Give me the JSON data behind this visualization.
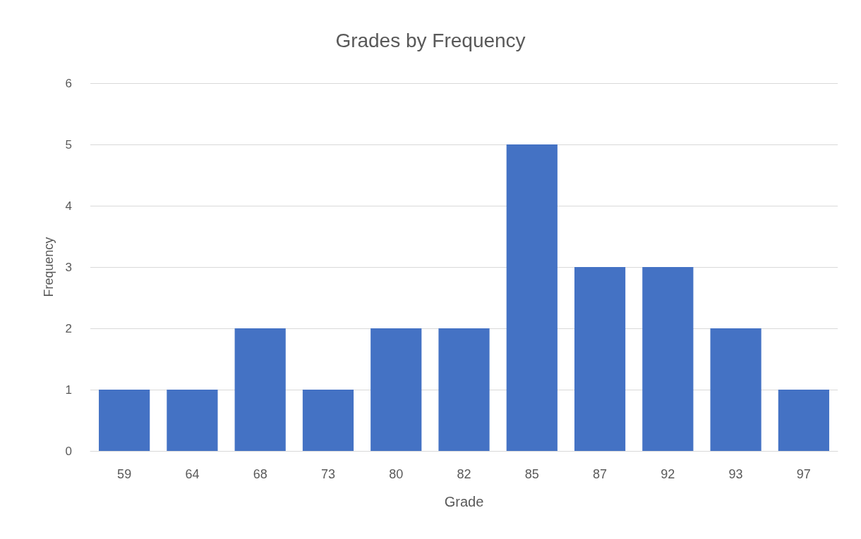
{
  "chart_data": {
    "type": "bar",
    "title": "Grades by Frequency",
    "xlabel": "Grade",
    "ylabel": "Frequency",
    "categories": [
      "59",
      "64",
      "68",
      "73",
      "80",
      "82",
      "85",
      "87",
      "92",
      "93",
      "97"
    ],
    "values": [
      1,
      1,
      2,
      1,
      2,
      2,
      5,
      3,
      3,
      2,
      1
    ],
    "color": "#4472c4",
    "ylim": [
      0,
      6
    ],
    "yticks": [
      0,
      1,
      2,
      3,
      4,
      5,
      6
    ],
    "grid": "y"
  }
}
